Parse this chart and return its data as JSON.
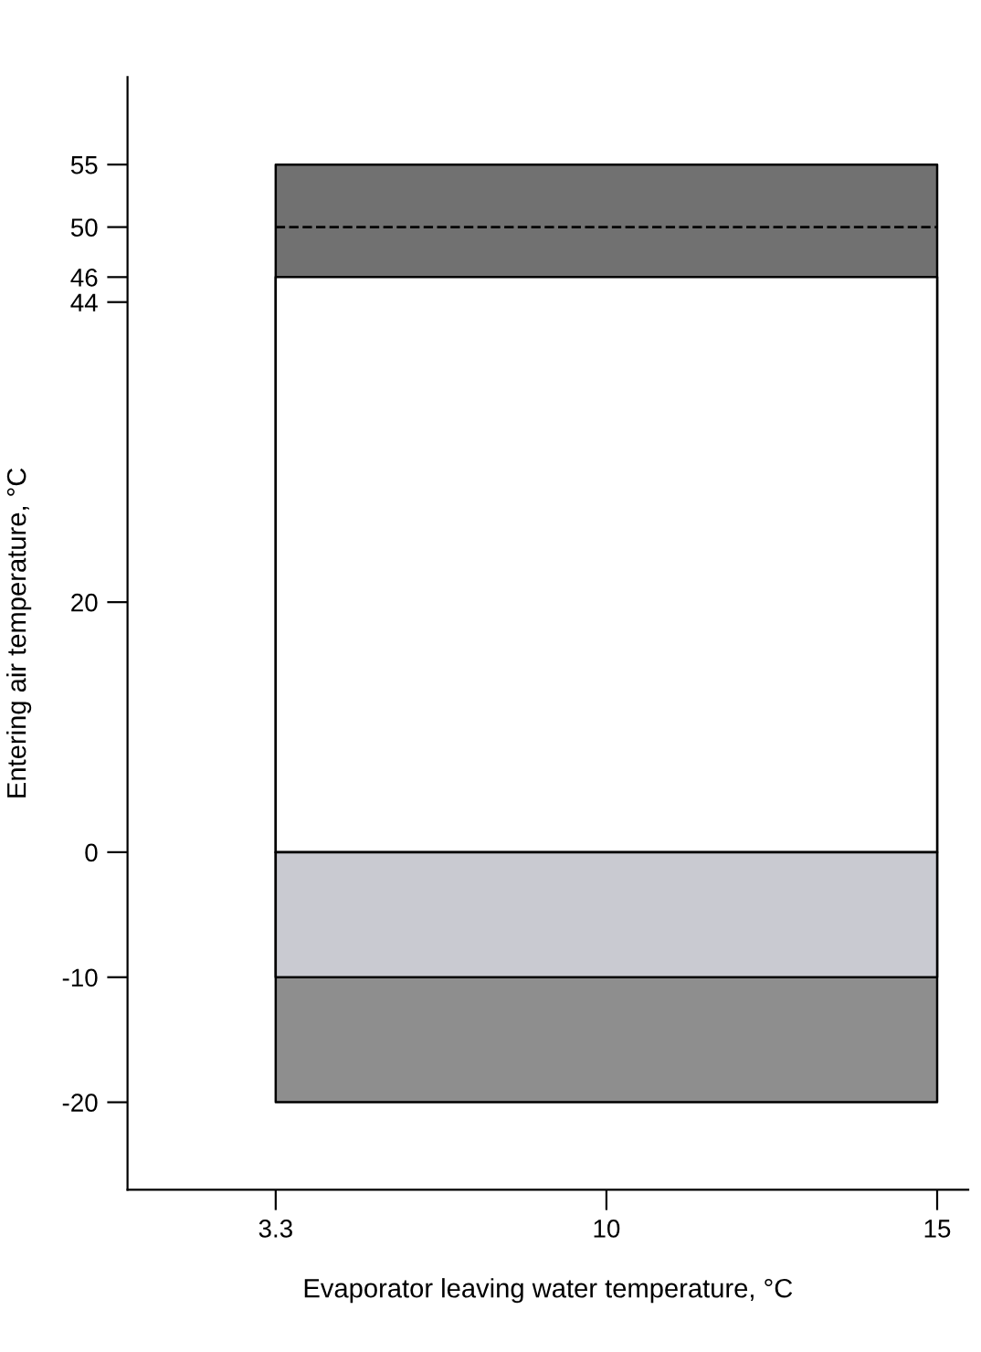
{
  "chart_data": {
    "type": "area",
    "xlabel": "Evaporator leaving water temperature, °C",
    "ylabel": "Entering air temperature, °C",
    "categories": [
      "3.3",
      "10",
      "15"
    ],
    "ylim": [
      -27,
      62
    ],
    "yticks": [
      -20,
      -10,
      0,
      20,
      44,
      46,
      50,
      55
    ],
    "series": [
      {
        "color": "#717171",
        "values": [
          55,
          55,
          55
        ]
      },
      {
        "color": "#ffffff",
        "values": [
          46,
          46,
          46
        ]
      },
      {
        "color": "#8e8e8e",
        "values": [
          -20,
          -20,
          -20
        ]
      },
      {
        "color": "#c9cad1",
        "values": [
          -10,
          -10,
          -10
        ]
      }
    ],
    "ref_lines": [
      {
        "axis": "y",
        "value": 50,
        "line_style": "dashed",
        "color": "#000000"
      }
    ]
  }
}
